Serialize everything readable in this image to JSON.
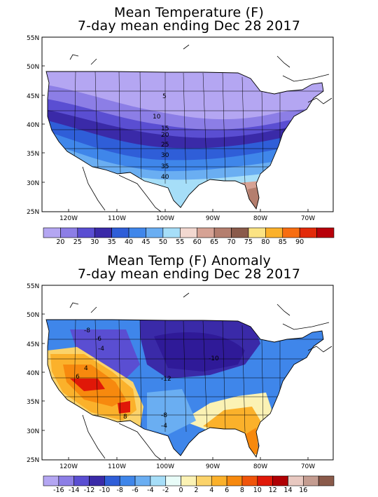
{
  "top": {
    "title_line1": "Mean Temperature (F)",
    "title_line2": "7-day mean ending Dec 28 2017",
    "lat_labels": [
      "55N",
      "50N",
      "45N",
      "40N",
      "35N",
      "30N",
      "25N"
    ],
    "lon_labels": [
      "120W",
      "110W",
      "100W",
      "90W",
      "80W",
      "70W"
    ],
    "contour_labels": [
      "5",
      "10",
      "15",
      "20",
      "25",
      "30",
      "35",
      "40"
    ],
    "legend": {
      "colors": [
        "#b4a6f2",
        "#8c7ee6",
        "#5a4ed2",
        "#3a2aa8",
        "#2f5ed8",
        "#3f86ea",
        "#6aaef2",
        "#a6def8",
        "#f2d8d0",
        "#d6a294",
        "#b47e6e",
        "#8a5a4a",
        "#fbe383",
        "#fbb12b",
        "#f76d10",
        "#e22a0a",
        "#b8000a"
      ],
      "labels": [
        "20",
        "25",
        "30",
        "35",
        "40",
        "45",
        "50",
        "55",
        "60",
        "65",
        "70",
        "75",
        "80",
        "85",
        "90"
      ]
    }
  },
  "bottom": {
    "title_line1": "Mean Temp (F) Anomaly",
    "title_line2": "7-day mean ending Dec 28 2017",
    "lat_labels": [
      "55N",
      "50N",
      "45N",
      "40N",
      "35N",
      "30N",
      "25N"
    ],
    "lon_labels": [
      "120W",
      "110W",
      "100W",
      "90W",
      "80W",
      "70W"
    ],
    "contour_labels": [
      "-8",
      "-6",
      "4",
      "-4",
      "6",
      "8",
      "-12",
      "-10",
      "-8",
      "-4"
    ],
    "legend": {
      "colors": [
        "#b4a6f2",
        "#8c7ee6",
        "#5a4ed2",
        "#3a2aa8",
        "#2f5ed8",
        "#3f86ea",
        "#6aaef2",
        "#a6def8",
        "#e8fcf8",
        "#fbf2b4",
        "#fbd36a",
        "#fbb12b",
        "#f7890e",
        "#f0540a",
        "#e01808",
        "#b00004",
        "#e8c8c0",
        "#c49c90",
        "#8a5a4a"
      ],
      "labels": [
        "-16",
        "-14",
        "-12",
        "-10",
        "-8",
        "-6",
        "-4",
        "-2",
        "0",
        "2",
        "4",
        "6",
        "8",
        "10",
        "12",
        "14",
        "16"
      ]
    }
  }
}
